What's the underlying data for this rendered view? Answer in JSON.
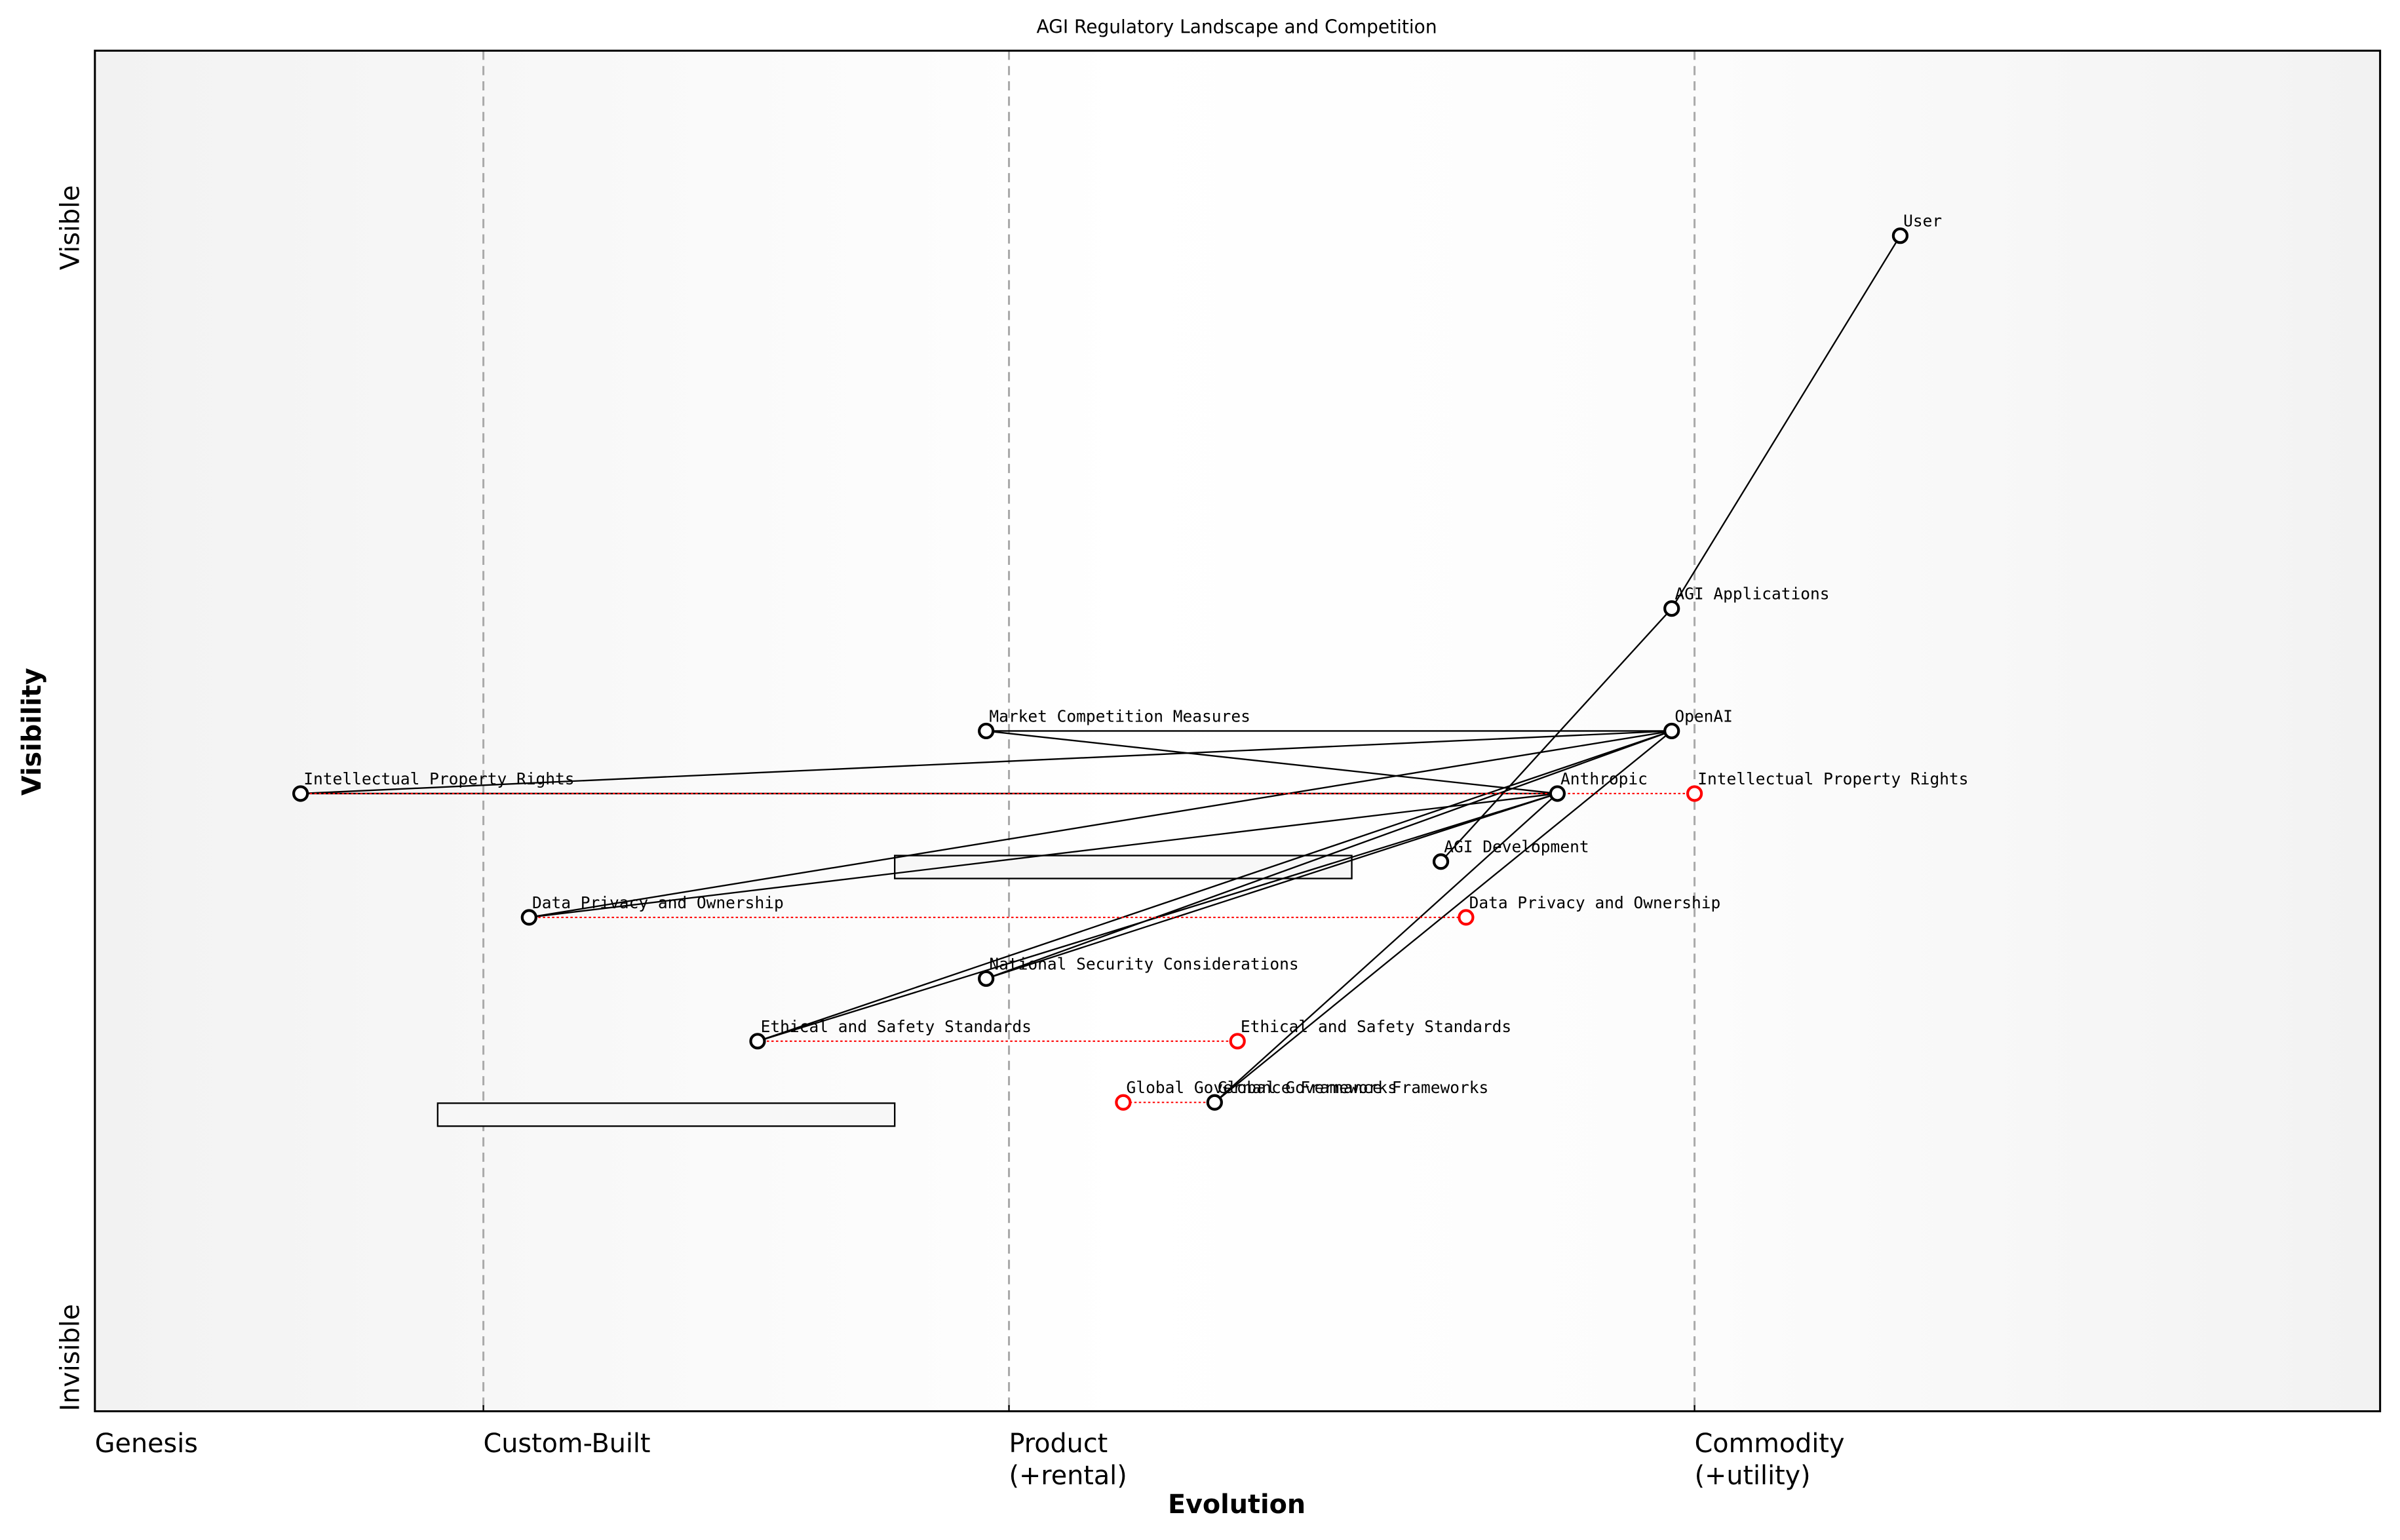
{
  "chart_data": {
    "type": "wardley",
    "title": "AGI Regulatory Landscape and Competition",
    "xlabel": "Evolution",
    "ylabel": "Visibility",
    "xlim": [
      0,
      1
    ],
    "ylim": [
      0,
      1
    ],
    "xticks": [
      {
        "value": 0,
        "label": "Genesis"
      },
      {
        "value": 0.17,
        "label": "Custom-Built"
      },
      {
        "value": 0.4,
        "label": "Product\n(+rental)"
      },
      {
        "value": 0.7,
        "label": "Commodity\n(+utility)"
      }
    ],
    "yticks": [
      {
        "value": 0,
        "label": "Invisible"
      },
      {
        "value": 0.87,
        "label": "Visible"
      }
    ],
    "components": [
      {
        "name": "User",
        "x": 0.79,
        "y": 0.864
      },
      {
        "name": "AGI Applications",
        "x": 0.69,
        "y": 0.59
      },
      {
        "name": "OpenAI",
        "x": 0.69,
        "y": 0.5
      },
      {
        "name": "Anthropic",
        "x": 0.64,
        "y": 0.454
      },
      {
        "name": "AGI Development",
        "x": 0.589,
        "y": 0.404
      },
      {
        "name": "Market Competition Measures",
        "x": 0.39,
        "y": 0.5
      },
      {
        "name": "Intellectual Property Rights",
        "x": 0.09,
        "y": 0.454
      },
      {
        "name": "Data Privacy and Ownership",
        "x": 0.19,
        "y": 0.363
      },
      {
        "name": "National Security Considerations",
        "x": 0.39,
        "y": 0.318
      },
      {
        "name": "Ethical and Safety Standards",
        "x": 0.29,
        "y": 0.272
      },
      {
        "name": "Global Governance Frameworks",
        "x": 0.49,
        "y": 0.227
      }
    ],
    "evolved": [
      {
        "name": "Intellectual Property Rights",
        "x": 0.7,
        "y": 0.454
      },
      {
        "name": "Data Privacy and Ownership",
        "x": 0.6,
        "y": 0.363
      },
      {
        "name": "Ethical and Safety Standards",
        "x": 0.5,
        "y": 0.272
      },
      {
        "name": "Global Governance Frameworks",
        "x": 0.45,
        "y": 0.227
      }
    ],
    "links": [
      [
        0,
        1
      ],
      [
        1,
        4
      ],
      [
        2,
        5
      ],
      [
        2,
        6
      ],
      [
        2,
        7
      ],
      [
        2,
        8
      ],
      [
        2,
        9
      ],
      [
        2,
        10
      ],
      [
        3,
        5
      ],
      [
        3,
        6
      ],
      [
        3,
        7
      ],
      [
        3,
        8
      ],
      [
        3,
        9
      ],
      [
        3,
        10
      ]
    ],
    "pipelines": [
      {
        "x_start": 0.35,
        "x_end": 0.55,
        "y": 0.4
      },
      {
        "x_start": 0.15,
        "x_end": 0.35,
        "y": 0.218
      }
    ],
    "evolve_color": "#ff0000"
  }
}
